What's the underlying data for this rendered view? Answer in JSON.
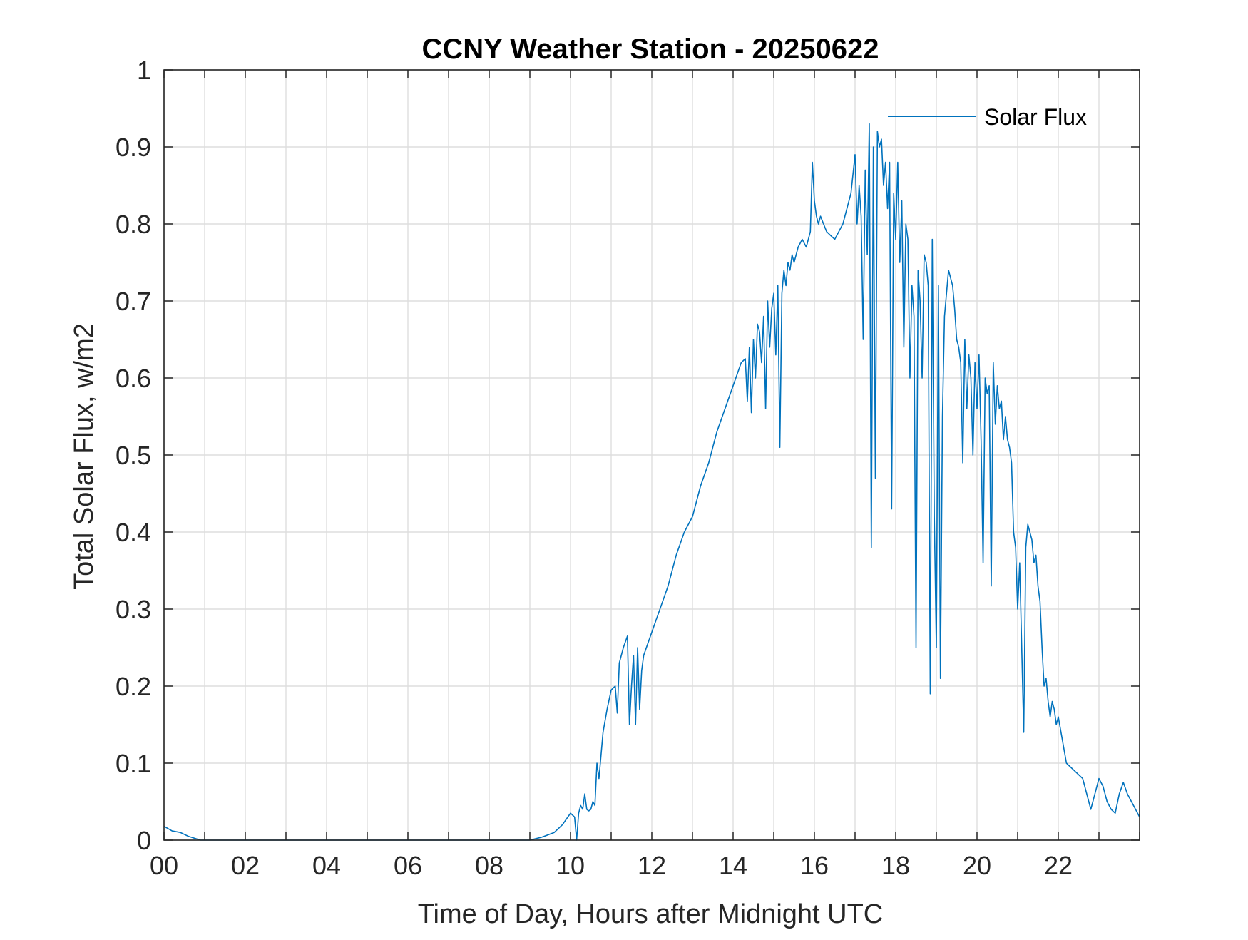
{
  "chart_data": {
    "type": "line",
    "title": "CCNY Weather Station - 20250622",
    "xlabel": "Time of Day, Hours after Midnight UTC",
    "ylabel": "Total Solar Flux, w/m2",
    "xlim": [
      0,
      24
    ],
    "ylim": [
      0,
      1
    ],
    "grid": true,
    "legend_position": "top-right",
    "colors": {
      "series": "#0072BD",
      "axis": "#262626",
      "grid": "#DEDEDE"
    },
    "x_tick_values": [
      0,
      2,
      4,
      6,
      8,
      10,
      12,
      14,
      16,
      18,
      20,
      22
    ],
    "x_tick_labels": [
      "00",
      "02",
      "04",
      "06",
      "08",
      "10",
      "12",
      "14",
      "16",
      "18",
      "20",
      "22"
    ],
    "x_grid_values": [
      0,
      1,
      2,
      3,
      4,
      5,
      6,
      7,
      8,
      9,
      10,
      11,
      12,
      13,
      14,
      15,
      16,
      17,
      18,
      19,
      20,
      21,
      22,
      23,
      24
    ],
    "y_tick_values": [
      0,
      0.1,
      0.2,
      0.3,
      0.4,
      0.5,
      0.6,
      0.7,
      0.8,
      0.9,
      1
    ],
    "y_tick_labels": [
      "0",
      "0.1",
      "0.2",
      "0.3",
      "0.4",
      "0.5",
      "0.6",
      "0.7",
      "0.8",
      "0.9",
      "1"
    ],
    "series": [
      {
        "name": "Solar Flux",
        "x": [
          0.0,
          0.2,
          0.4,
          0.6,
          0.9,
          1.5,
          3.0,
          5.0,
          7.0,
          9.0,
          9.3,
          9.6,
          9.8,
          10.0,
          10.1,
          10.15,
          10.2,
          10.25,
          10.3,
          10.35,
          10.4,
          10.45,
          10.5,
          10.55,
          10.6,
          10.65,
          10.7,
          10.75,
          10.8,
          10.9,
          11.0,
          11.1,
          11.15,
          11.2,
          11.3,
          11.4,
          11.45,
          11.5,
          11.55,
          11.6,
          11.65,
          11.7,
          11.75,
          11.8,
          12.0,
          12.2,
          12.4,
          12.6,
          12.8,
          13.0,
          13.2,
          13.4,
          13.6,
          13.8,
          14.0,
          14.2,
          14.3,
          14.35,
          14.4,
          14.45,
          14.5,
          14.55,
          14.6,
          14.65,
          14.7,
          14.75,
          14.8,
          14.85,
          14.9,
          14.95,
          15.0,
          15.05,
          15.1,
          15.15,
          15.2,
          15.25,
          15.3,
          15.35,
          15.4,
          15.45,
          15.5,
          15.6,
          15.7,
          15.8,
          15.9,
          15.95,
          16.0,
          16.05,
          16.1,
          16.15,
          16.3,
          16.5,
          16.7,
          16.9,
          17.0,
          17.05,
          17.1,
          17.15,
          17.2,
          17.25,
          17.3,
          17.35,
          17.4,
          17.45,
          17.5,
          17.55,
          17.6,
          17.65,
          17.7,
          17.75,
          17.8,
          17.85,
          17.9,
          17.95,
          18.0,
          18.05,
          18.1,
          18.15,
          18.2,
          18.25,
          18.3,
          18.35,
          18.4,
          18.45,
          18.5,
          18.55,
          18.6,
          18.65,
          18.7,
          18.75,
          18.8,
          18.85,
          18.9,
          18.95,
          19.0,
          19.05,
          19.1,
          19.15,
          19.2,
          19.3,
          19.4,
          19.45,
          19.5,
          19.55,
          19.6,
          19.65,
          19.7,
          19.75,
          19.8,
          19.85,
          19.9,
          19.95,
          20.0,
          20.05,
          20.1,
          20.15,
          20.2,
          20.25,
          20.3,
          20.35,
          20.4,
          20.45,
          20.5,
          20.55,
          20.6,
          20.65,
          20.7,
          20.75,
          20.8,
          20.85,
          20.9,
          20.95,
          21.0,
          21.05,
          21.1,
          21.15,
          21.2,
          21.25,
          21.3,
          21.35,
          21.4,
          21.45,
          21.5,
          21.55,
          21.6,
          21.65,
          21.7,
          21.75,
          21.8,
          21.85,
          21.9,
          21.95,
          22.0,
          22.1,
          22.2,
          22.4,
          22.6,
          22.7,
          22.8,
          22.9,
          23.0,
          23.1,
          23.2,
          23.3,
          23.4,
          23.5,
          23.6,
          23.7,
          23.8,
          23.9,
          24.0
        ],
        "y": [
          0.018,
          0.012,
          0.01,
          0.005,
          0.0,
          0.0,
          0.0,
          0.0,
          0.0,
          0.0,
          0.004,
          0.01,
          0.02,
          0.035,
          0.03,
          0.0,
          0.035,
          0.045,
          0.04,
          0.06,
          0.04,
          0.038,
          0.04,
          0.05,
          0.045,
          0.1,
          0.08,
          0.11,
          0.14,
          0.17,
          0.195,
          0.2,
          0.165,
          0.23,
          0.25,
          0.265,
          0.15,
          0.2,
          0.24,
          0.15,
          0.25,
          0.17,
          0.22,
          0.24,
          0.27,
          0.3,
          0.33,
          0.37,
          0.4,
          0.42,
          0.46,
          0.49,
          0.53,
          0.56,
          0.59,
          0.62,
          0.625,
          0.57,
          0.64,
          0.555,
          0.65,
          0.6,
          0.67,
          0.66,
          0.62,
          0.68,
          0.56,
          0.7,
          0.64,
          0.69,
          0.71,
          0.63,
          0.72,
          0.51,
          0.71,
          0.74,
          0.72,
          0.75,
          0.74,
          0.76,
          0.75,
          0.77,
          0.78,
          0.77,
          0.79,
          0.88,
          0.83,
          0.81,
          0.8,
          0.81,
          0.79,
          0.78,
          0.8,
          0.84,
          0.89,
          0.8,
          0.85,
          0.81,
          0.65,
          0.87,
          0.76,
          0.93,
          0.38,
          0.9,
          0.47,
          0.92,
          0.9,
          0.91,
          0.85,
          0.88,
          0.82,
          0.88,
          0.43,
          0.84,
          0.78,
          0.88,
          0.75,
          0.83,
          0.64,
          0.8,
          0.78,
          0.6,
          0.72,
          0.68,
          0.25,
          0.74,
          0.7,
          0.6,
          0.76,
          0.75,
          0.72,
          0.19,
          0.78,
          0.42,
          0.25,
          0.72,
          0.21,
          0.55,
          0.68,
          0.74,
          0.72,
          0.69,
          0.65,
          0.64,
          0.62,
          0.49,
          0.65,
          0.56,
          0.63,
          0.6,
          0.5,
          0.62,
          0.56,
          0.63,
          0.52,
          0.36,
          0.6,
          0.58,
          0.59,
          0.33,
          0.62,
          0.54,
          0.59,
          0.56,
          0.57,
          0.52,
          0.55,
          0.52,
          0.51,
          0.49,
          0.4,
          0.38,
          0.3,
          0.36,
          0.25,
          0.14,
          0.38,
          0.41,
          0.4,
          0.39,
          0.36,
          0.37,
          0.33,
          0.31,
          0.25,
          0.2,
          0.21,
          0.18,
          0.16,
          0.18,
          0.17,
          0.15,
          0.16,
          0.13,
          0.1,
          0.09,
          0.08,
          0.06,
          0.04,
          0.06,
          0.08,
          0.07,
          0.05,
          0.04,
          0.035,
          0.06,
          0.075,
          0.06,
          0.05,
          0.04,
          0.03
        ]
      }
    ]
  }
}
